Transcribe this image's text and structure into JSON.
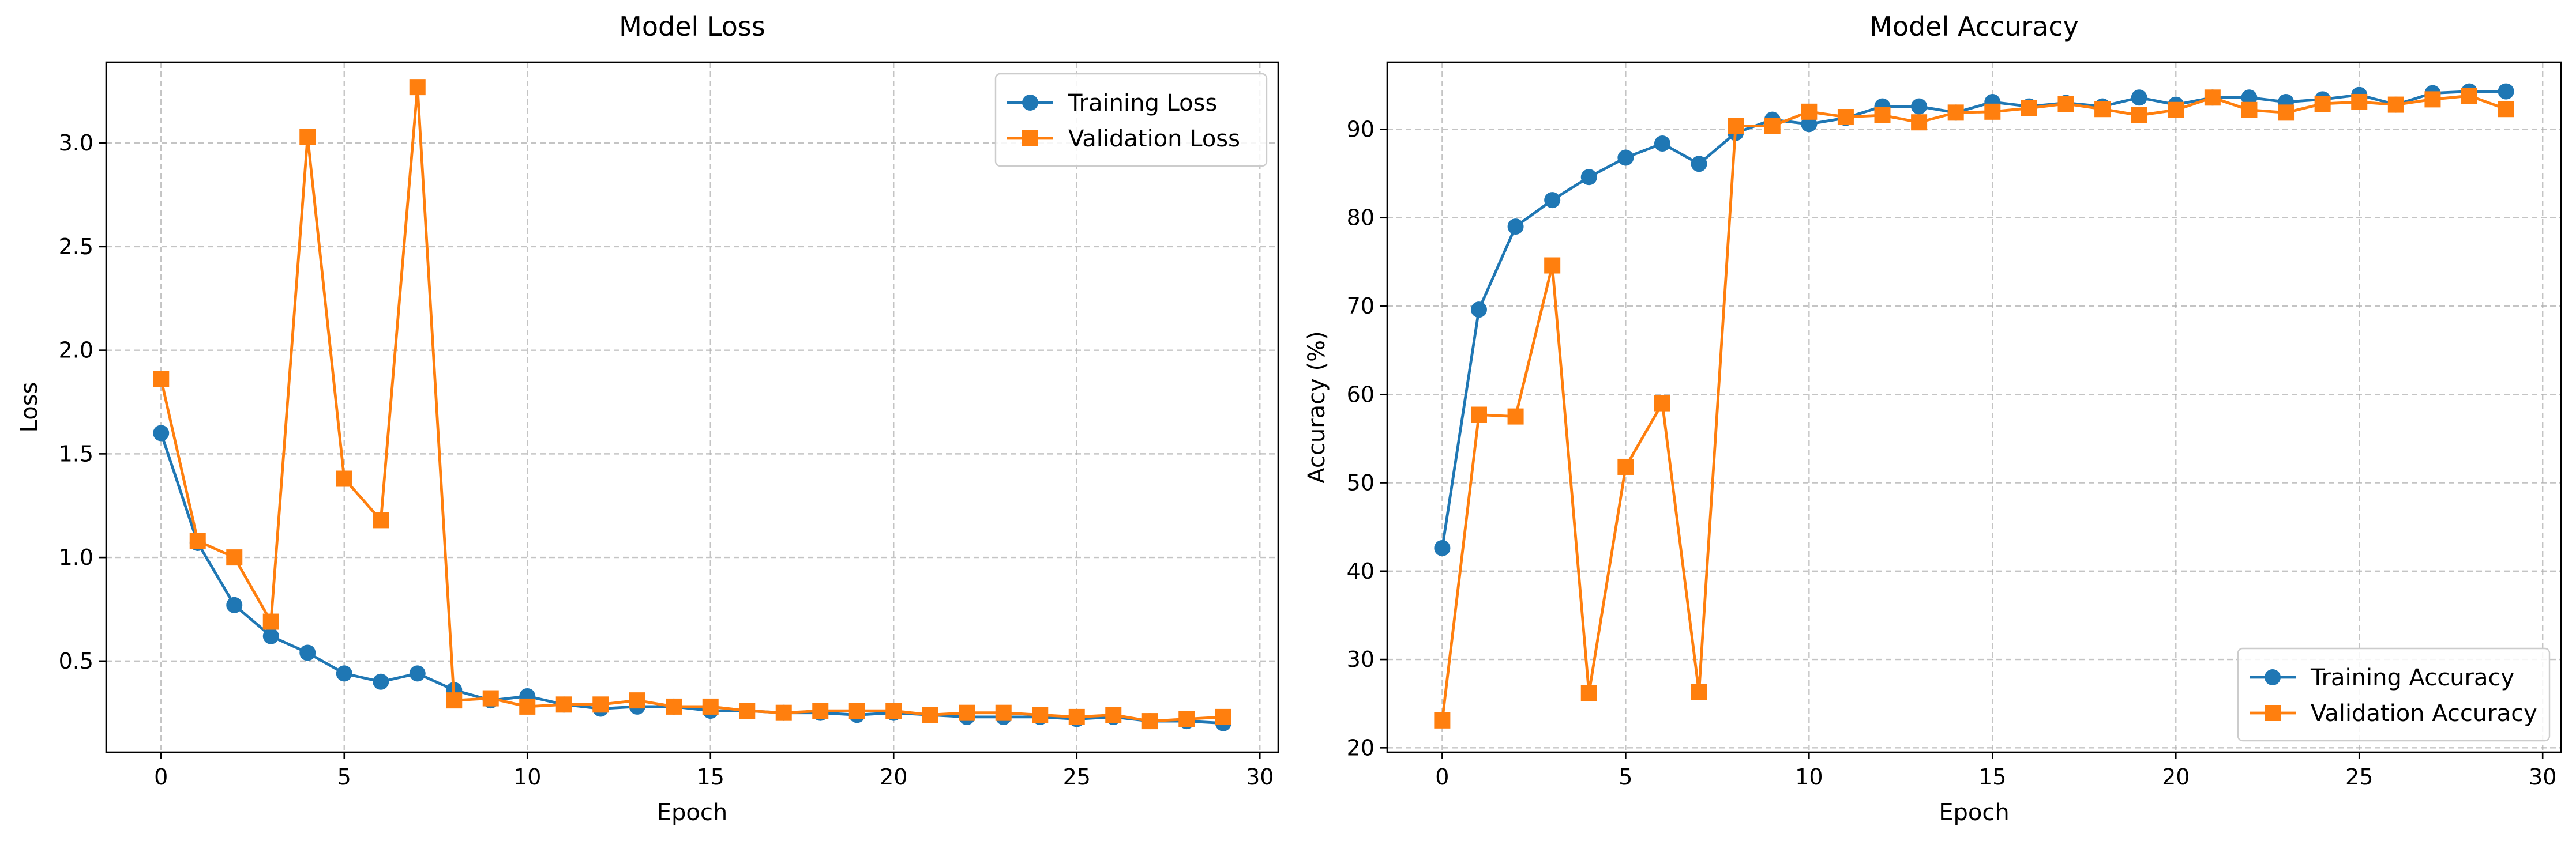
{
  "chart_data": [
    {
      "type": "line",
      "title": "Model Loss",
      "xlabel": "Epoch",
      "ylabel": "Loss",
      "xlim": [
        -1.5,
        30.5
      ],
      "ylim": [
        0.06,
        3.39
      ],
      "xticks": [
        0,
        5,
        10,
        15,
        20,
        25,
        30
      ],
      "yticks": [
        0.5,
        1.0,
        1.5,
        2.0,
        2.5,
        3.0
      ],
      "ytick_labels": [
        "0.5",
        "1.0",
        "1.5",
        "2.0",
        "2.5",
        "3.0"
      ],
      "grid": true,
      "legend_position": "top-right",
      "x": [
        0,
        1,
        2,
        3,
        4,
        5,
        6,
        7,
        8,
        9,
        10,
        11,
        12,
        13,
        14,
        15,
        16,
        17,
        18,
        19,
        20,
        21,
        22,
        23,
        24,
        25,
        26,
        27,
        28,
        29
      ],
      "series": [
        {
          "name": "Training Loss",
          "color": "#1f77b4",
          "marker": "circle",
          "values": [
            1.6,
            1.07,
            0.77,
            0.62,
            0.54,
            0.44,
            0.4,
            0.44,
            0.36,
            0.31,
            0.33,
            0.29,
            0.27,
            0.28,
            0.28,
            0.26,
            0.26,
            0.25,
            0.25,
            0.24,
            0.25,
            0.24,
            0.23,
            0.23,
            0.23,
            0.22,
            0.23,
            0.21,
            0.21,
            0.2
          ]
        },
        {
          "name": "Validation Loss",
          "color": "#ff7f0e",
          "marker": "square",
          "values": [
            1.86,
            1.08,
            1.0,
            0.69,
            3.03,
            1.38,
            1.18,
            3.27,
            0.31,
            0.32,
            0.28,
            0.29,
            0.29,
            0.31,
            0.28,
            0.28,
            0.26,
            0.25,
            0.26,
            0.26,
            0.26,
            0.24,
            0.25,
            0.25,
            0.24,
            0.23,
            0.24,
            0.21,
            0.22,
            0.23
          ]
        }
      ]
    },
    {
      "type": "line",
      "title": "Model Accuracy",
      "xlabel": "Epoch",
      "ylabel": "Accuracy (%)",
      "xlim": [
        -1.5,
        30.5
      ],
      "ylim": [
        19.5,
        97.6
      ],
      "xticks": [
        0,
        5,
        10,
        15,
        20,
        25,
        30
      ],
      "yticks": [
        20,
        30,
        40,
        50,
        60,
        70,
        80,
        90
      ],
      "ytick_labels": [
        "20",
        "30",
        "40",
        "50",
        "60",
        "70",
        "80",
        "90"
      ],
      "grid": true,
      "legend_position": "bottom-right",
      "x": [
        0,
        1,
        2,
        3,
        4,
        5,
        6,
        7,
        8,
        9,
        10,
        11,
        12,
        13,
        14,
        15,
        16,
        17,
        18,
        19,
        20,
        21,
        22,
        23,
        24,
        25,
        26,
        27,
        28,
        29
      ],
      "series": [
        {
          "name": "Training Accuracy",
          "color": "#1f77b4",
          "marker": "circle",
          "values": [
            42.6,
            69.6,
            79.0,
            82.0,
            84.6,
            86.8,
            88.4,
            86.1,
            89.6,
            91.1,
            90.6,
            91.3,
            92.6,
            92.6,
            91.9,
            93.1,
            92.6,
            93.0,
            92.6,
            93.6,
            92.8,
            93.6,
            93.6,
            93.1,
            93.4,
            93.9,
            92.8,
            94.1,
            94.3,
            94.3
          ]
        },
        {
          "name": "Validation Accuracy",
          "color": "#ff7f0e",
          "marker": "square",
          "values": [
            23.1,
            57.7,
            57.5,
            74.6,
            26.2,
            51.8,
            59.0,
            26.3,
            90.4,
            90.4,
            92.0,
            91.4,
            91.6,
            90.8,
            91.9,
            92.0,
            92.4,
            92.9,
            92.3,
            91.6,
            92.2,
            93.6,
            92.2,
            91.9,
            92.9,
            93.1,
            92.8,
            93.4,
            93.8,
            92.3
          ]
        }
      ]
    }
  ]
}
